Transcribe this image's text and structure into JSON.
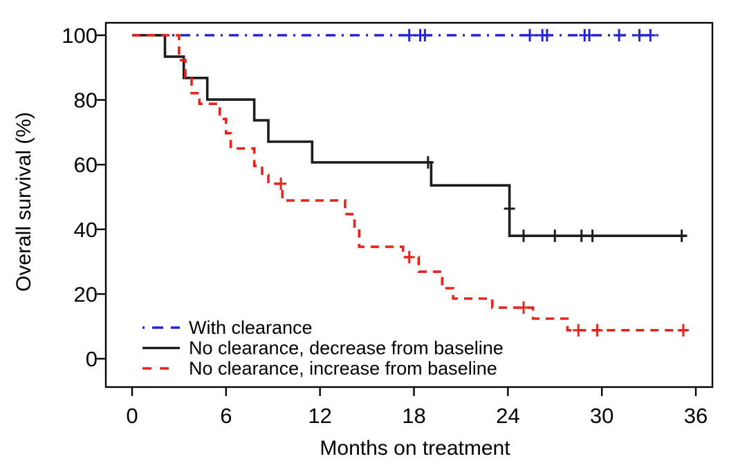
{
  "chart_data": {
    "type": "line",
    "chart_kind": "kaplan-meier-step-survival",
    "title": "",
    "xlabel": "Months on treatment",
    "ylabel": "Overall survival (%)",
    "xlim": [
      0,
      36
    ],
    "ylim": [
      0,
      100
    ],
    "x_ticks": [
      0,
      6,
      12,
      18,
      24,
      30,
      36
    ],
    "y_ticks": [
      0,
      20,
      40,
      60,
      80,
      100
    ],
    "grid": false,
    "legend_position": "inside-bottom-left",
    "axis_color": "#000000",
    "background_color": "#ffffff",
    "series": [
      {
        "name": "With clearance",
        "color": "#2424d8",
        "line_style": "dash-dot",
        "points": [
          [
            0,
            100
          ],
          [
            33.6,
            100
          ]
        ],
        "censor_marks": [
          [
            17.7,
            100
          ],
          [
            18.4,
            100
          ],
          [
            18.7,
            100
          ],
          [
            25.4,
            100
          ],
          [
            26.2,
            100
          ],
          [
            26.5,
            100
          ],
          [
            28.9,
            100
          ],
          [
            29.2,
            100
          ],
          [
            31.1,
            100
          ],
          [
            32.4,
            100
          ],
          [
            33.1,
            100
          ]
        ]
      },
      {
        "name": "No clearance, decrease from baseline",
        "color": "#1c1c1c",
        "line_style": "solid",
        "points": [
          [
            0,
            100
          ],
          [
            2.1,
            100
          ],
          [
            2.1,
            93.4
          ],
          [
            3.3,
            93.4
          ],
          [
            3.3,
            86.8
          ],
          [
            4.8,
            86.8
          ],
          [
            4.8,
            80.1
          ],
          [
            7.8,
            80.1
          ],
          [
            7.8,
            73.7
          ],
          [
            8.7,
            73.7
          ],
          [
            8.7,
            67.1
          ],
          [
            11.5,
            67.1
          ],
          [
            11.5,
            60.7
          ],
          [
            19.1,
            60.7
          ],
          [
            19.1,
            53.6
          ],
          [
            24.1,
            53.6
          ],
          [
            24.1,
            38.0
          ],
          [
            35.4,
            38.0
          ]
        ],
        "censor_marks": [
          [
            18.9,
            60.7
          ],
          [
            24.1,
            46.4
          ],
          [
            25.0,
            38.0
          ],
          [
            27.0,
            38.0
          ],
          [
            28.7,
            38.0
          ],
          [
            29.4,
            38.0
          ],
          [
            35.1,
            38.0
          ]
        ]
      },
      {
        "name": "No clearance, increase from baseline",
        "color": "#e8231b",
        "line_style": "dashed",
        "points": [
          [
            0,
            100
          ],
          [
            3.0,
            100
          ],
          [
            3.0,
            92.3
          ],
          [
            3.4,
            92.3
          ],
          [
            3.4,
            87.0
          ],
          [
            3.8,
            87.0
          ],
          [
            3.8,
            82.1
          ],
          [
            4.3,
            82.1
          ],
          [
            4.3,
            78.8
          ],
          [
            5.6,
            78.8
          ],
          [
            5.6,
            74.1
          ],
          [
            6.0,
            74.1
          ],
          [
            6.0,
            69.7
          ],
          [
            6.3,
            69.7
          ],
          [
            6.3,
            65.0
          ],
          [
            7.8,
            65.0
          ],
          [
            7.8,
            59.6
          ],
          [
            8.3,
            59.6
          ],
          [
            8.3,
            56.8
          ],
          [
            8.7,
            56.8
          ],
          [
            8.7,
            54.1
          ],
          [
            9.6,
            54.1
          ],
          [
            9.6,
            48.9
          ],
          [
            13.6,
            48.9
          ],
          [
            13.6,
            44.7
          ],
          [
            14.2,
            44.7
          ],
          [
            14.2,
            40.4
          ],
          [
            14.5,
            40.4
          ],
          [
            14.5,
            34.6
          ],
          [
            17.3,
            34.6
          ],
          [
            17.3,
            31.4
          ],
          [
            18.3,
            31.4
          ],
          [
            18.3,
            26.9
          ],
          [
            19.8,
            26.9
          ],
          [
            19.8,
            21.8
          ],
          [
            20.5,
            21.8
          ],
          [
            20.5,
            18.6
          ],
          [
            23.0,
            18.6
          ],
          [
            23.0,
            15.8
          ],
          [
            25.6,
            15.8
          ],
          [
            25.6,
            12.4
          ],
          [
            27.8,
            12.4
          ],
          [
            27.8,
            8.8
          ],
          [
            35.8,
            8.8
          ]
        ],
        "censor_marks": [
          [
            9.5,
            54.1
          ],
          [
            17.7,
            31.4
          ],
          [
            25.0,
            15.8
          ],
          [
            28.5,
            8.8
          ],
          [
            29.7,
            8.8
          ],
          [
            35.2,
            8.8
          ]
        ]
      }
    ]
  }
}
